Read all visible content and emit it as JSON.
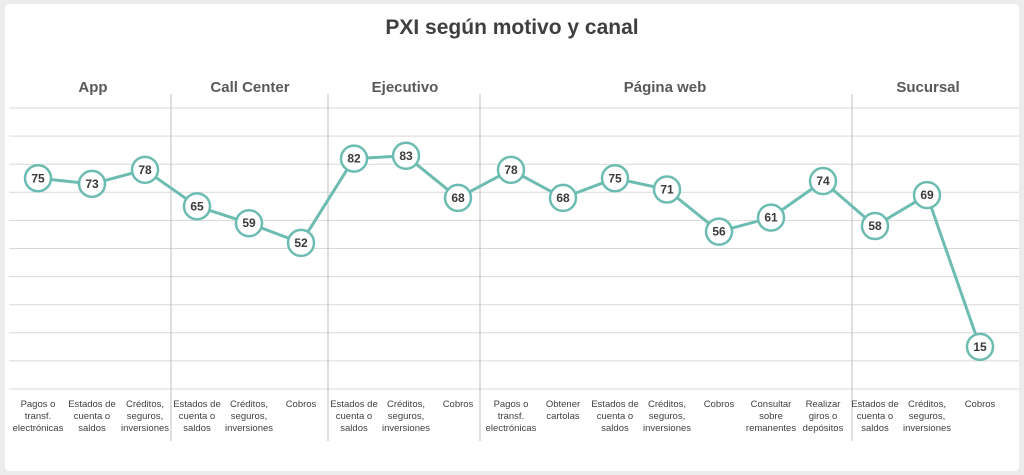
{
  "chart_data": {
    "type": "line",
    "title": "PXI según motivo y canal",
    "ylim": [
      0,
      100
    ],
    "grid": true,
    "groups": [
      {
        "name": "App",
        "categories": [
          "Pagos o transf. electrónicas",
          "Estados de cuenta o saldos",
          "Créditos, seguros, inversiones"
        ]
      },
      {
        "name": "Call Center",
        "categories": [
          "Estados de cuenta o saldos",
          "Créditos, seguros, inversiones",
          "Cobros"
        ]
      },
      {
        "name": "Ejecutivo",
        "categories": [
          "Estados de cuenta o saldos",
          "Créditos, seguros, inversiones",
          "Cobros"
        ]
      },
      {
        "name": "Página web",
        "categories": [
          "Pagos o transf. electrónicas",
          "Obtener cartolas",
          "Estados de cuenta o saldos",
          "Créditos, seguros, inversiones",
          "Cobros",
          "Consultar sobre remanentes",
          "Realizar giros o depósitos"
        ]
      },
      {
        "name": "Sucursal",
        "categories": [
          "Estados de cuenta o saldos",
          "Créditos, seguros, inversiones",
          "Cobros"
        ]
      }
    ],
    "tick_labels": [
      [
        "Pagos o",
        "transf.",
        "electrónicas"
      ],
      [
        "Estados de",
        "cuenta o",
        "saldos"
      ],
      [
        "Créditos,",
        "seguros,",
        "inversiones"
      ],
      [
        "Estados de",
        "cuenta o",
        "saldos"
      ],
      [
        "Créditos,",
        "seguros,",
        "inversiones"
      ],
      [
        "Cobros"
      ],
      [
        "Estados de",
        "cuenta o",
        "saldos"
      ],
      [
        "Créditos,",
        "seguros,",
        "inversiones"
      ],
      [
        "Cobros"
      ],
      [
        "Pagos o",
        "transf.",
        "electrónicas"
      ],
      [
        "Obtener",
        "cartolas"
      ],
      [
        "Estados de",
        "cuenta o",
        "saldos"
      ],
      [
        "Créditos,",
        "seguros,",
        "inversiones"
      ],
      [
        "Cobros"
      ],
      [
        "Consultar",
        "sobre",
        "remanentes"
      ],
      [
        "Realizar",
        "giros o",
        "depósitos"
      ],
      [
        "Estados de",
        "cuenta o",
        "saldos"
      ],
      [
        "Créditos,",
        "seguros,",
        "inversiones"
      ],
      [
        "Cobros"
      ]
    ],
    "values": [
      75,
      73,
      78,
      65,
      59,
      52,
      82,
      83,
      68,
      78,
      68,
      75,
      71,
      56,
      61,
      74,
      58,
      69,
      15
    ],
    "colors": {
      "line": "#6dbcb1",
      "marker_fill": "#ffffff",
      "grid": "#d9d9d9",
      "separator": "#bfbfbf"
    }
  }
}
